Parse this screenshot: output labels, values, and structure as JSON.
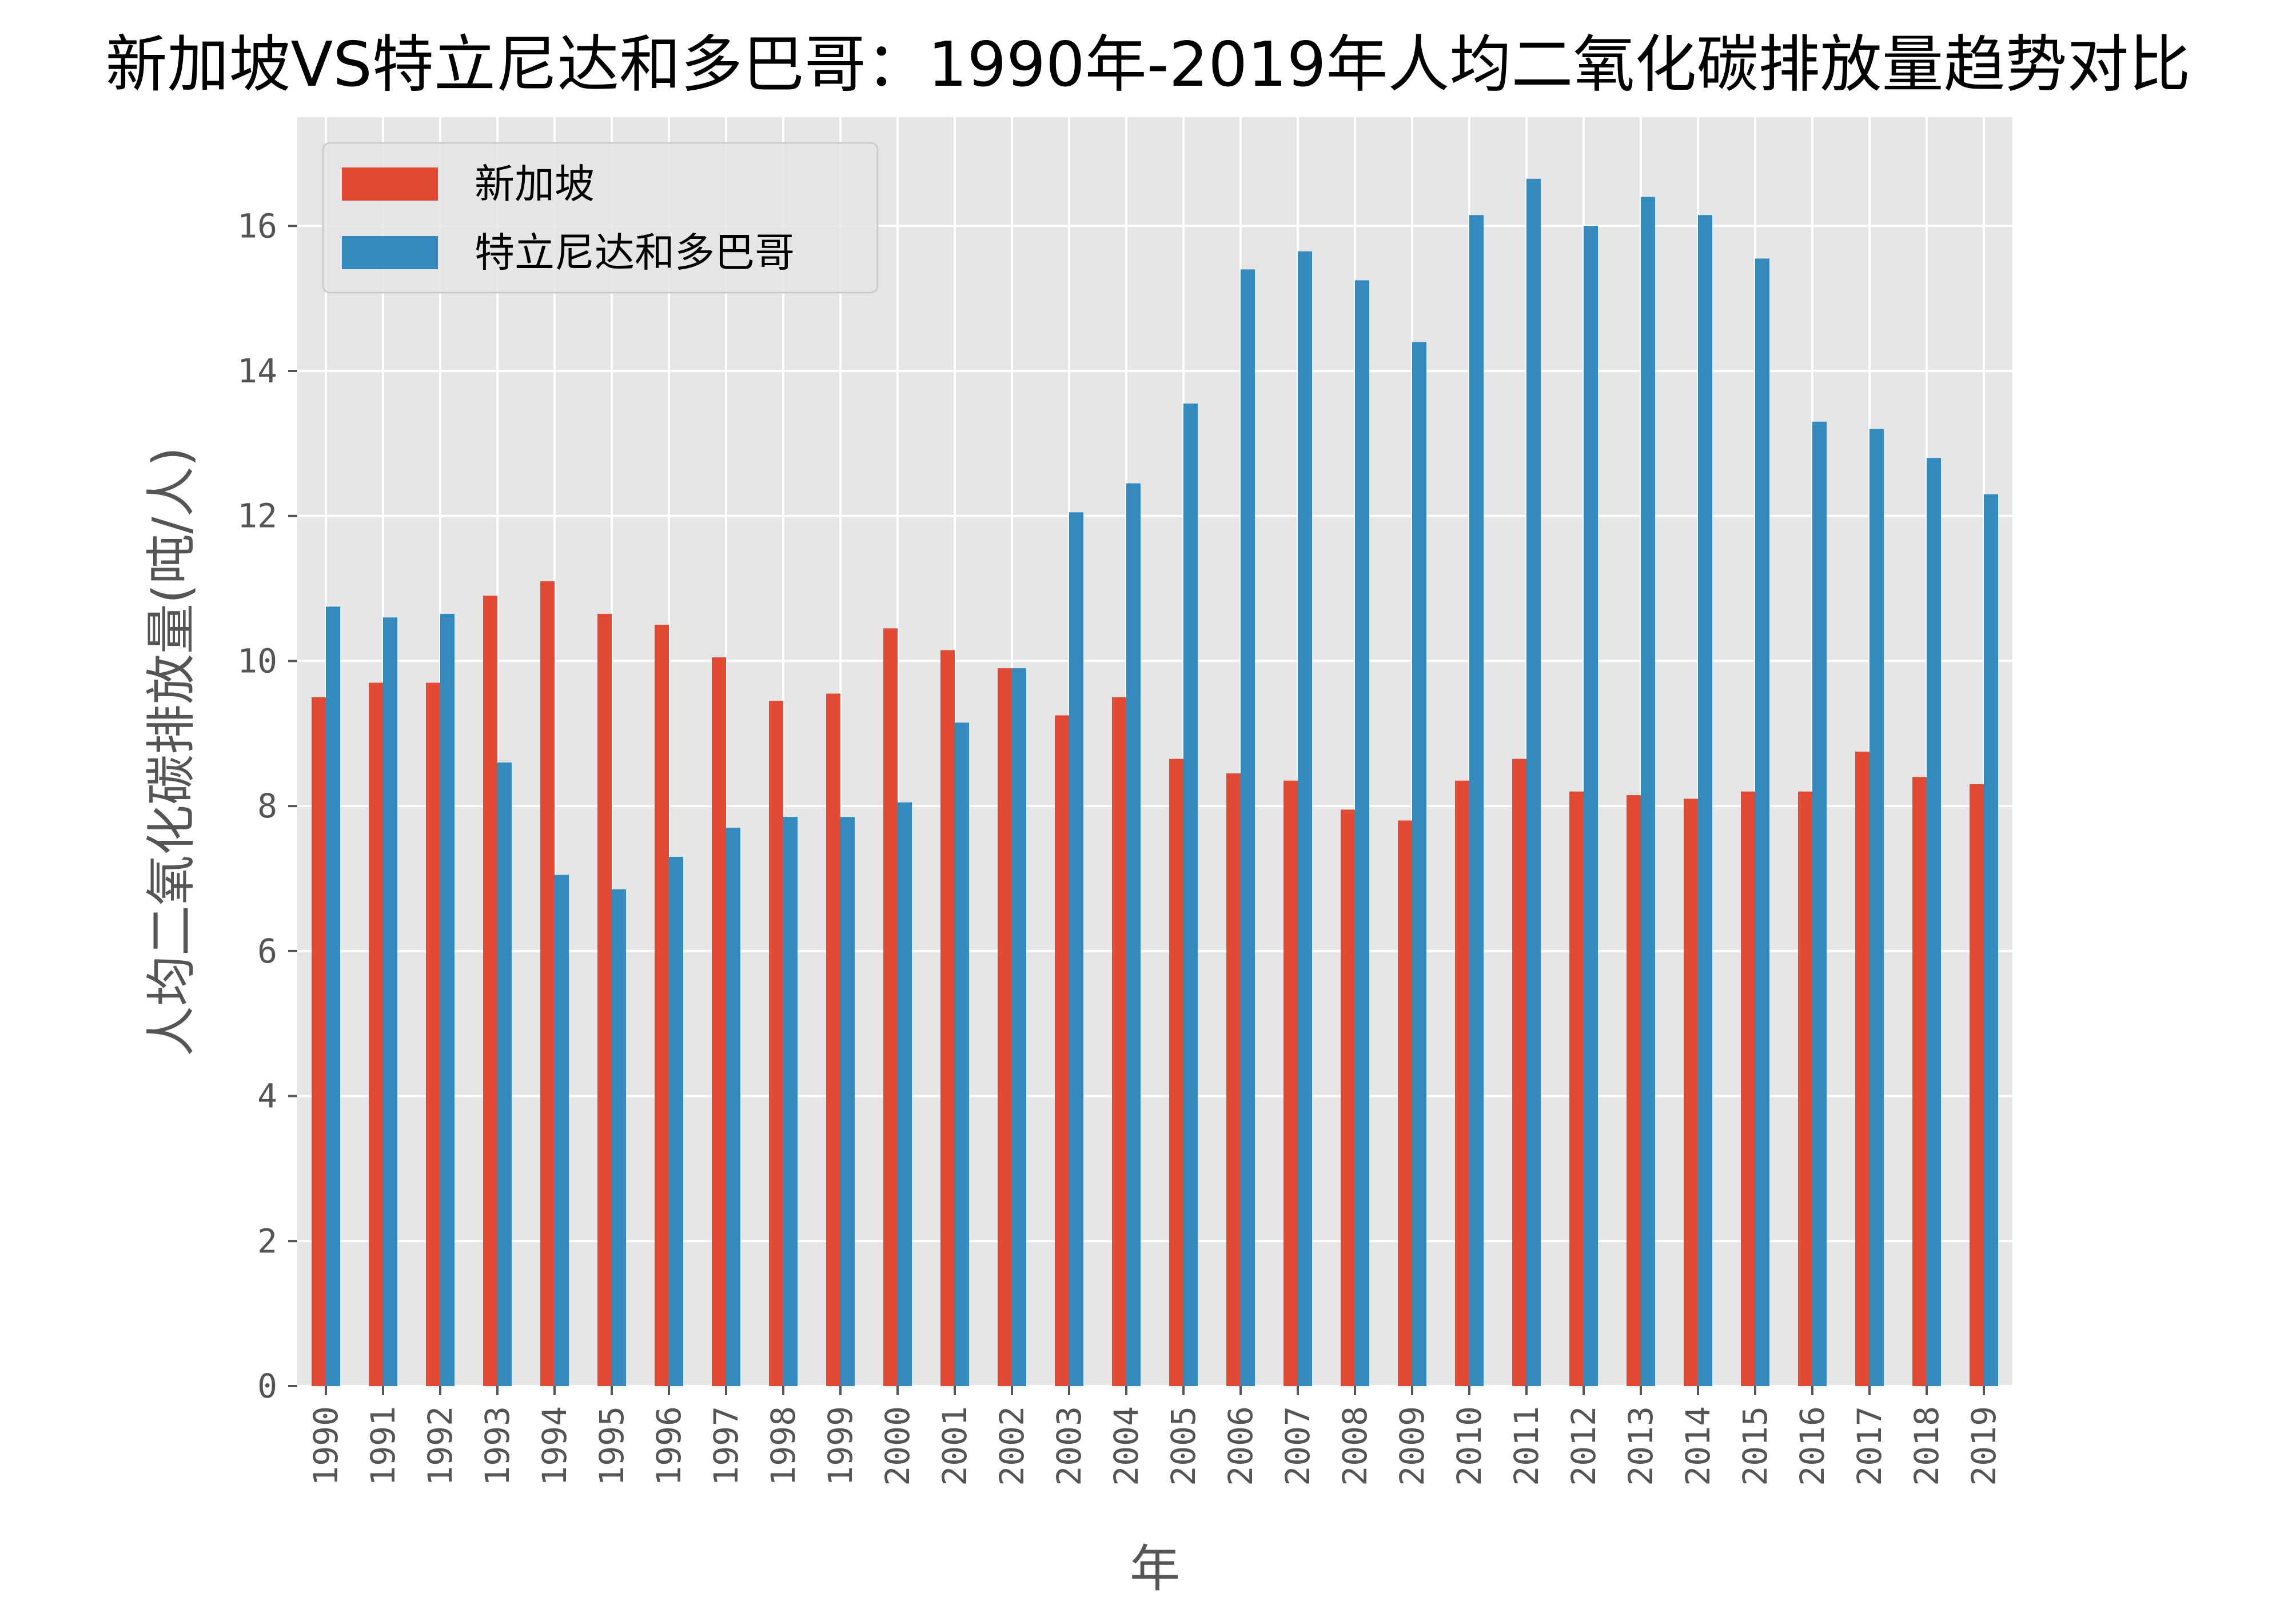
{
  "colors": {
    "series_1": "#E24A33",
    "series_2": "#348ABD",
    "plot_background": "#E5E5E5",
    "grid": "#FFFFFF",
    "tick_text": "#555555"
  },
  "chart_data": {
    "type": "bar",
    "title": "新加坡VS特立尼达和多巴哥：1990年-2019年人均二氧化碳排放量趋势对比",
    "xlabel": "年",
    "ylabel": "人均二氧化碳排放量(吨/人)",
    "ylim": [
      0,
      17.5
    ],
    "yticks": [
      "0",
      "2",
      "4",
      "6",
      "8",
      "10",
      "12",
      "14",
      "16"
    ],
    "grid": true,
    "legend_position": "upper-left",
    "categories": [
      "1990",
      "1991",
      "1992",
      "1993",
      "1994",
      "1995",
      "1996",
      "1997",
      "1998",
      "1999",
      "2000",
      "2001",
      "2002",
      "2003",
      "2004",
      "2005",
      "2006",
      "2007",
      "2008",
      "2009",
      "2010",
      "2011",
      "2012",
      "2013",
      "2014",
      "2015",
      "2016",
      "2017",
      "2018",
      "2019"
    ],
    "series": [
      {
        "name": "新加坡",
        "values": [
          9.5,
          9.7,
          9.7,
          10.9,
          11.1,
          10.65,
          10.5,
          10.05,
          9.45,
          9.55,
          10.45,
          10.15,
          9.9,
          9.25,
          9.5,
          8.65,
          8.45,
          8.35,
          7.95,
          7.8,
          8.35,
          8.65,
          8.2,
          8.15,
          8.1,
          8.2,
          8.2,
          8.75,
          8.4,
          8.3
        ]
      },
      {
        "name": "特立尼达和多巴哥",
        "values": [
          10.75,
          10.6,
          10.65,
          8.6,
          7.05,
          6.85,
          7.3,
          7.7,
          7.85,
          7.85,
          8.05,
          9.15,
          9.9,
          12.05,
          12.45,
          13.55,
          15.4,
          15.65,
          15.25,
          14.4,
          16.15,
          16.65,
          16.0,
          16.4,
          16.15,
          15.55,
          13.3,
          13.2,
          12.8,
          12.3
        ]
      }
    ]
  }
}
